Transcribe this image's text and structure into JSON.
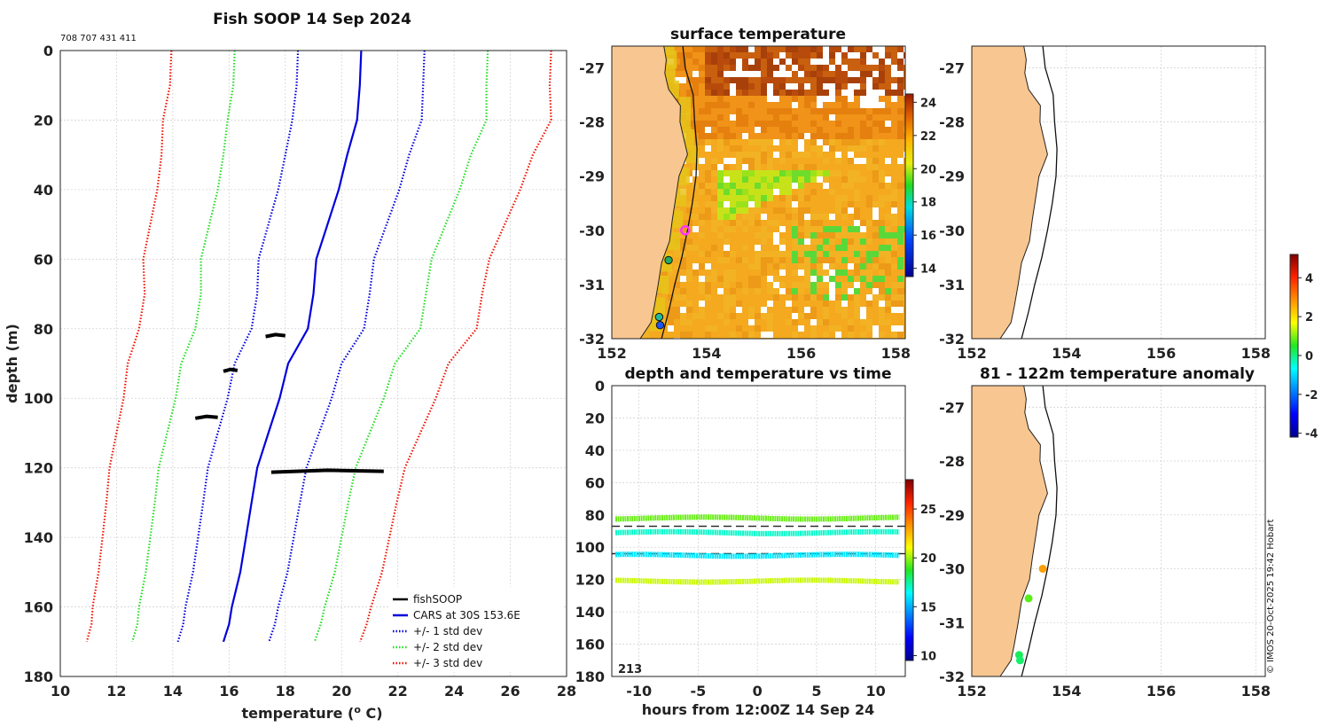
{
  "chart_data": [
    {
      "id": "profile",
      "type": "line",
      "title": "Fish SOOP 14 Sep 2024",
      "subtitle": "708 707 431 411",
      "xlabel": "temperature (",
      "xlabel_sup": "o",
      "xlabel_unit": " C)",
      "ylabel": "depth (m)",
      "xlim": [
        10,
        28
      ],
      "ylim": [
        180,
        0
      ],
      "xticks": [
        10,
        12,
        14,
        16,
        18,
        20,
        22,
        24,
        26,
        28
      ],
      "yticks": [
        0,
        20,
        40,
        60,
        80,
        100,
        120,
        140,
        160,
        180
      ],
      "depth": [
        0,
        10,
        20,
        30,
        40,
        50,
        60,
        70,
        80,
        90,
        100,
        110,
        120,
        130,
        140,
        150,
        160,
        165,
        170
      ],
      "mean": [
        20.7,
        20.65,
        20.55,
        20.2,
        19.9,
        19.5,
        19.1,
        19.0,
        18.8,
        18.1,
        17.8,
        17.4,
        17.0,
        16.8,
        16.6,
        16.4,
        16.1,
        16.0,
        15.8
      ],
      "std": [
        2.25,
        2.25,
        2.3,
        2.2,
        2.15,
        2.1,
        2.05,
        2.0,
        2.0,
        1.9,
        1.85,
        1.8,
        1.75,
        1.72,
        1.7,
        1.68,
        1.65,
        1.63,
        1.62
      ],
      "series": [
        {
          "name": "fishSOOP",
          "color": "#000000",
          "style": "solid"
        },
        {
          "name": "CARS at 30S 153.6E",
          "color": "#0000dd",
          "style": "solid"
        },
        {
          "name": "+/- 1 std dev",
          "color": "#0000dd",
          "style": "dotted",
          "k": 1
        },
        {
          "name": "+/- 2 std dev",
          "color": "#22dd22",
          "style": "dotted",
          "k": 2
        },
        {
          "name": "+/- 3 std dev",
          "color": "#ee1100",
          "style": "dotted",
          "k": 3
        }
      ],
      "fish_segments": [
        {
          "depth": 82,
          "tmin": 17.3,
          "tmax": 18.0
        },
        {
          "depth": 92,
          "tmin": 15.8,
          "tmax": 16.3
        },
        {
          "depth": 105.5,
          "tmin": 14.8,
          "tmax": 15.6
        },
        {
          "depth": 121,
          "tmin": 17.5,
          "tmax": 21.5
        }
      ]
    },
    {
      "id": "sst-map",
      "type": "heatmap",
      "title": "surface temperature",
      "xlim": [
        152,
        158.2
      ],
      "ylim": [
        -32,
        -26.6
      ],
      "xticks": [
        152,
        154,
        156,
        158
      ],
      "yticks": [
        -27,
        -28,
        -29,
        -30,
        -31,
        -32
      ],
      "colorbar": {
        "min": 13.5,
        "max": 24.5,
        "ticks": [
          14,
          16,
          18,
          20,
          22,
          24
        ]
      },
      "markers": [
        {
          "lon": 153.55,
          "lat": -30.0,
          "style": "ring",
          "color": "#ff33ff"
        },
        {
          "lon": 153.2,
          "lat": -30.55,
          "color": "#22aa66"
        },
        {
          "lon": 153.0,
          "lat": -31.6,
          "color": "#22bb99"
        },
        {
          "lon": 153.02,
          "lat": -31.75,
          "color": "#2255ee"
        }
      ]
    },
    {
      "id": "time-depth",
      "type": "scatter",
      "title": "depth and temperature vs time",
      "xlabel": "hours from 12:00Z 14 Sep 24",
      "xlim": [
        -12.3,
        12.5
      ],
      "ylim": [
        180,
        0
      ],
      "xticks": [
        -10,
        -5,
        0,
        5,
        10
      ],
      "yticks": [
        0,
        20,
        40,
        60,
        80,
        100,
        120,
        140,
        160,
        180
      ],
      "annotation": "213",
      "dashed_depths": [
        87,
        104
      ],
      "colorbar": {
        "min": 9.5,
        "max": 28,
        "ticks": [
          10,
          15,
          20,
          25
        ]
      },
      "tracks": [
        {
          "depth": 82,
          "temp": 19.5
        },
        {
          "depth": 91,
          "temp": 17.0
        },
        {
          "depth": 105,
          "temp": 16.0
        },
        {
          "depth": 121,
          "temp": 20.5
        }
      ]
    },
    {
      "id": "blank-map",
      "type": "scatter",
      "title": "",
      "xlim": [
        152,
        158.2
      ],
      "ylim": [
        -32,
        -26.6
      ],
      "xticks": [
        152,
        154,
        156,
        158
      ],
      "yticks": [
        -27,
        -28,
        -29,
        -30,
        -31,
        -32
      ]
    },
    {
      "id": "anomaly-map",
      "type": "scatter",
      "title": "81 - 122m temperature anomaly",
      "xlim": [
        152,
        158.2
      ],
      "ylim": [
        -32,
        -26.6
      ],
      "xticks": [
        152,
        154,
        156,
        158
      ],
      "yticks": [
        -27,
        -28,
        -29,
        -30,
        -31,
        -32
      ],
      "colorbar": {
        "min": -4.2,
        "max": 5.2,
        "ticks": [
          4,
          2,
          0,
          -2,
          -4
        ]
      },
      "points": [
        {
          "lon": 153.5,
          "lat": -30.0,
          "anom": 2.7
        },
        {
          "lon": 153.2,
          "lat": -30.55,
          "anom": 0.8
        },
        {
          "lon": 153.0,
          "lat": -31.6,
          "anom": 0.2
        },
        {
          "lon": 153.02,
          "lat": -31.7,
          "anom": 0.1
        }
      ]
    }
  ],
  "credit": "© IMOS 20-Oct-2025 19:42 Hobart"
}
